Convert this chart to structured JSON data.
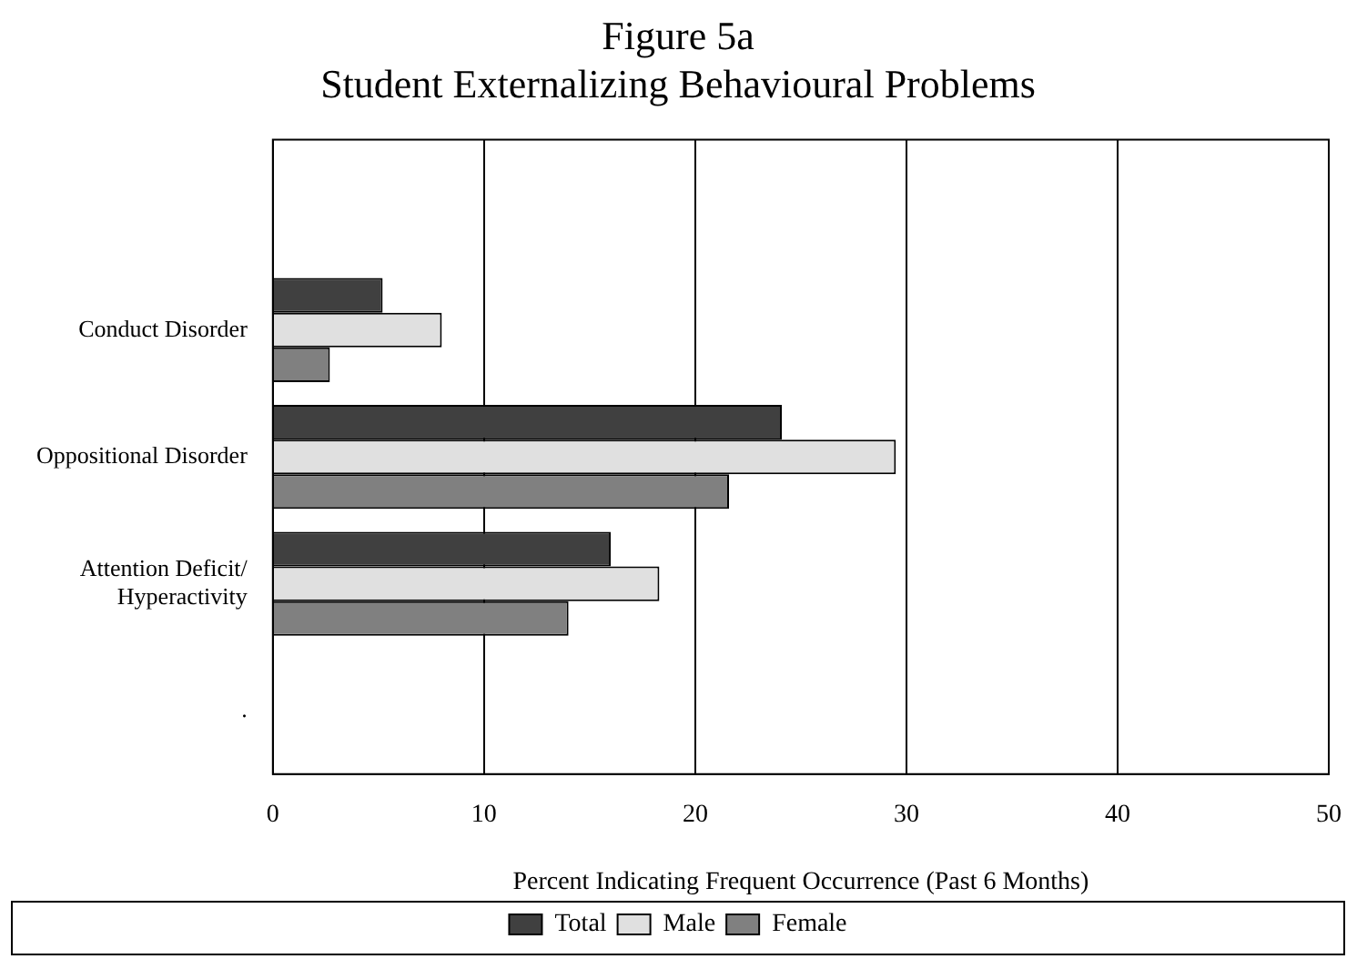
{
  "chart_data": {
    "type": "bar",
    "orientation": "horizontal",
    "title": "Figure 5a",
    "subtitle": "Student Externalizing Behavioural Problems",
    "xlabel": "Percent Indicating Frequent Occurrence (Past 6 Months)",
    "categories": [
      null,
      "Conduct Disorder",
      "Oppositional Disorder",
      "Attention Deficit/\nHyperactivity",
      "."
    ],
    "series": [
      {
        "name": "Total",
        "color": "#404040",
        "values": [
          null,
          5.2,
          24.1,
          16.0,
          null
        ]
      },
      {
        "name": "Male",
        "color": "#e0e0e0",
        "values": [
          null,
          8.0,
          29.5,
          18.3,
          null
        ]
      },
      {
        "name": "Female",
        "color": "#808080",
        "values": [
          null,
          2.7,
          21.6,
          14.0,
          null
        ]
      }
    ],
    "xlim": [
      0,
      50
    ],
    "xticks": [
      0,
      10,
      20,
      30,
      40,
      50
    ],
    "grid": "x",
    "legend": "bottom"
  }
}
